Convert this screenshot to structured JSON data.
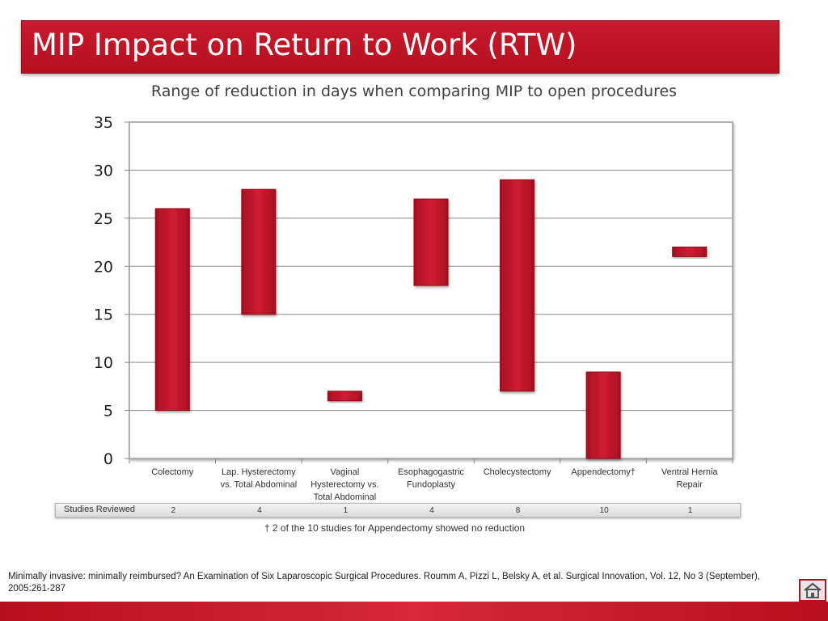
{
  "title": "MIP Impact on Return to Work (RTW)",
  "chart_data": {
    "type": "bar",
    "subtype": "floating-range",
    "title": "Range of reduction in days when comparing MIP to open procedures",
    "categories": [
      [
        "Colectomy"
      ],
      [
        "Lap. Hysterectomy",
        "vs. Total Abdominal"
      ],
      [
        "Vaginal",
        "Hysterectomy vs.",
        "Total Abdominal"
      ],
      [
        "Esophagogastric",
        "Fundoplasty"
      ],
      [
        "Cholecystectomy"
      ],
      [
        "Appendectomy†"
      ],
      [
        "Ventral Hernia",
        "Repair"
      ]
    ],
    "low": [
      5,
      15,
      6,
      18,
      7,
      0,
      21
    ],
    "high": [
      26,
      28,
      7,
      27,
      29,
      9,
      22
    ],
    "ylim": [
      0,
      35
    ],
    "yticks": [
      0,
      5,
      10,
      15,
      20,
      25,
      30,
      35
    ],
    "grid": true,
    "color": "#c0142a"
  },
  "studies": {
    "label": "Studies Reviewed",
    "counts": [
      "2",
      "4",
      "1",
      "4",
      "8",
      "10",
      "1"
    ]
  },
  "footnote": "† 2 of the 10 studies for Appendectomy showed no reduction",
  "citation": "Minimally invasive: minimally reimbursed? An Examination of Six Laparoscopic Surgical Procedures. Roumm A, Pizzi L, Belsky A, et al. Surgical Innovation, Vol. 12, No 3 (September), 2005:261-287",
  "icons": {
    "home": "home-icon"
  }
}
